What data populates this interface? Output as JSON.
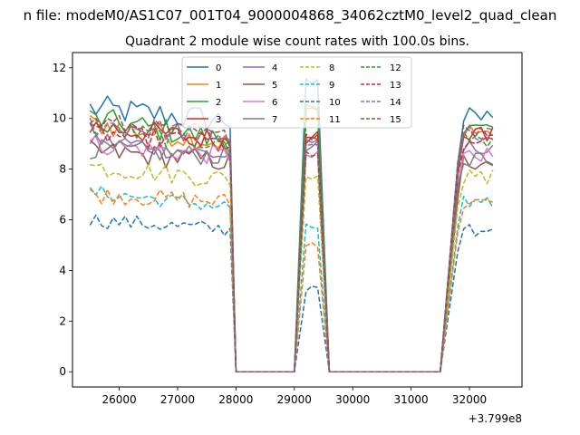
{
  "chart_data": {
    "type": "line",
    "suptitle": "n file: modeM0/AS1C07_001T04_9000004868_34062cztM0_level2_quad_clean",
    "title": "Quadrant 2 module wise count rates with 100.0s bins.",
    "xlabel": "",
    "ylabel": "",
    "x_offset_label": "+3.799e8",
    "xlim": [
      25200,
      32900
    ],
    "ylim": [
      -0.6,
      12.6
    ],
    "x_ticks": [
      26000,
      27000,
      28000,
      29000,
      30000,
      31000,
      32000
    ],
    "x_tick_labels": [
      "26000",
      "27000",
      "28000",
      "29000",
      "30000",
      "31000",
      "32000"
    ],
    "y_ticks": [
      0,
      2,
      4,
      6,
      8,
      10,
      12
    ],
    "y_tick_labels": [
      "0",
      "2",
      "4",
      "6",
      "8",
      "10",
      "12"
    ],
    "grid": false,
    "legend_position": "top-center",
    "legend_columns": 4,
    "series": [
      {
        "name": "0",
        "color": "#1f77b4",
        "style": "solid",
        "base": 10.4,
        "trend": -0.5,
        "noise": 0.55,
        "spike": 1.0
      },
      {
        "name": "1",
        "color": "#ff7f0e",
        "style": "solid",
        "base": 9.8,
        "trend": -0.8,
        "noise": 0.45,
        "spike": 0.6
      },
      {
        "name": "2",
        "color": "#2ca02c",
        "style": "solid",
        "base": 10.0,
        "trend": -0.9,
        "noise": 0.5,
        "spike": 0.3
      },
      {
        "name": "3",
        "color": "#d62728",
        "style": "solid",
        "base": 9.7,
        "trend": -0.6,
        "noise": 0.45,
        "spike": -0.3
      },
      {
        "name": "4",
        "color": "#9467bd",
        "style": "solid",
        "base": 9.2,
        "trend": -0.7,
        "noise": 0.4,
        "spike": -0.2
      },
      {
        "name": "5",
        "color": "#8c564b",
        "style": "solid",
        "base": 8.7,
        "trend": -0.4,
        "noise": 0.45,
        "spike": 0.4
      },
      {
        "name": "6",
        "color": "#e377c2",
        "style": "solid",
        "base": 9.0,
        "trend": -0.5,
        "noise": 0.4,
        "spike": -0.5
      },
      {
        "name": "7",
        "color": "#7f7f7f",
        "style": "solid",
        "base": 8.8,
        "trend": -0.3,
        "noise": 0.4,
        "spike": 0.1
      },
      {
        "name": "8",
        "color": "#bcbd22",
        "style": "dashed",
        "base": 8.1,
        "trend": -0.5,
        "noise": 0.4,
        "spike": -0.3
      },
      {
        "name": "9",
        "color": "#17becf",
        "style": "dashed",
        "base": 7.1,
        "trend": -0.6,
        "noise": 0.3,
        "spike": -1.4
      },
      {
        "name": "10",
        "color": "#1f77b4",
        "style": "dashed",
        "base": 6.0,
        "trend": -0.4,
        "noise": 0.3,
        "spike": -2.8
      },
      {
        "name": "11",
        "color": "#ff7f0e",
        "style": "dashed",
        "base": 7.0,
        "trend": -0.3,
        "noise": 0.35,
        "spike": -1.9
      },
      {
        "name": "12",
        "color": "#2ca02c",
        "style": "dashed",
        "base": 9.6,
        "trend": -0.6,
        "noise": 0.4,
        "spike": 0.4
      },
      {
        "name": "13",
        "color": "#d62728",
        "style": "dashed",
        "base": 9.4,
        "trend": -0.4,
        "noise": 0.4,
        "spike": -0.2
      },
      {
        "name": "14",
        "color": "#9467bd",
        "style": "dashed",
        "base": 9.8,
        "trend": -0.5,
        "noise": 0.45,
        "spike": -1.0
      },
      {
        "name": "15",
        "color": "#8c564b",
        "style": "dashed",
        "base": 9.9,
        "trend": -0.7,
        "noise": 0.4,
        "spike": -1.2
      }
    ],
    "segments": [
      {
        "x_start": 25500,
        "x_end": 27900,
        "level": 1.0
      },
      {
        "x_start": 28000,
        "x_end": 29000,
        "level": 0.0
      },
      {
        "x_start": 29200,
        "x_end": 29400,
        "level": 1.0
      },
      {
        "x_start": 29600,
        "x_end": 31500,
        "level": 0.0
      },
      {
        "x_start": 31800,
        "x_end": 32400,
        "level": 0.9
      }
    ]
  }
}
